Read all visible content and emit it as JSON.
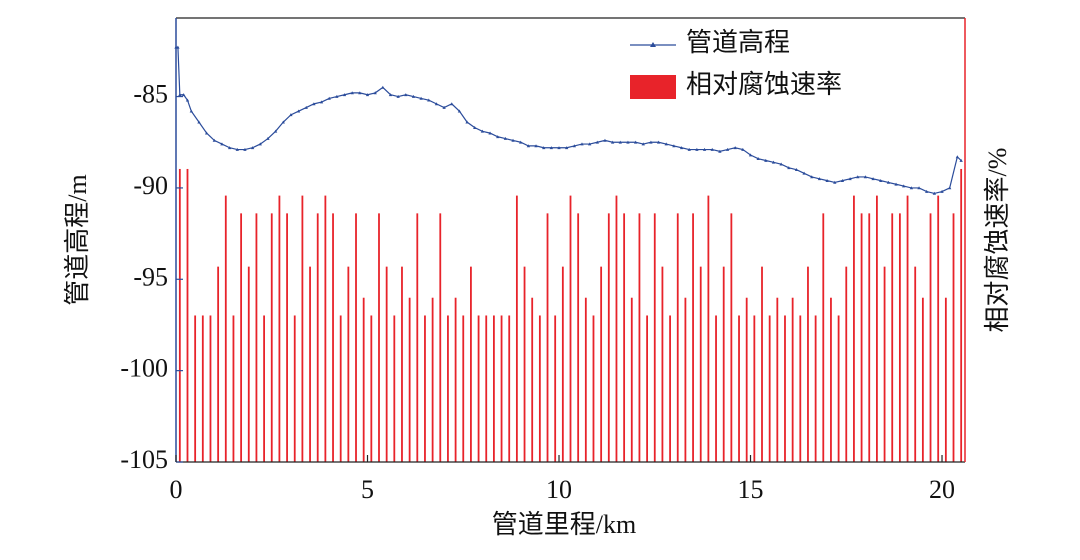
{
  "chart_data": {
    "type": "line",
    "xlabel": "管道里程/km",
    "ylabel": "管道高程/m",
    "y2label": "相对腐蚀速率/%",
    "xlim": [
      0,
      20.6
    ],
    "xticks": [
      0,
      5,
      10,
      15,
      20
    ],
    "ylim": [
      -105,
      -80.7
    ],
    "yticks": [
      -105,
      -100,
      -95,
      -90,
      -85
    ],
    "y2lim": [
      0,
      100
    ],
    "legend": "upper right",
    "series": [
      {
        "name": "管道高程",
        "color": "#2b4c9b",
        "x": [
          0,
          0.05,
          0.1,
          0.2,
          0.3,
          0.4,
          0.6,
          0.8,
          1.0,
          1.2,
          1.4,
          1.6,
          1.8,
          2.0,
          2.2,
          2.4,
          2.6,
          2.8,
          3.0,
          3.2,
          3.4,
          3.6,
          3.8,
          4.0,
          4.2,
          4.4,
          4.6,
          4.8,
          5.0,
          5.2,
          5.4,
          5.6,
          5.8,
          6.0,
          6.2,
          6.4,
          6.6,
          6.8,
          7.0,
          7.2,
          7.4,
          7.6,
          7.8,
          8.0,
          8.2,
          8.4,
          8.6,
          8.8,
          9.0,
          9.2,
          9.4,
          9.6,
          9.8,
          10.0,
          10.2,
          10.4,
          10.6,
          10.8,
          11.0,
          11.2,
          11.4,
          11.6,
          11.8,
          12.0,
          12.2,
          12.4,
          12.6,
          12.8,
          13.0,
          13.2,
          13.4,
          13.6,
          13.8,
          14.0,
          14.2,
          14.4,
          14.6,
          14.8,
          15.0,
          15.2,
          15.4,
          15.6,
          15.8,
          16.0,
          16.2,
          16.4,
          16.6,
          16.8,
          17.0,
          17.2,
          17.4,
          17.6,
          17.8,
          18.0,
          18.2,
          18.4,
          18.6,
          18.8,
          19.0,
          19.2,
          19.4,
          19.6,
          19.8,
          20.0,
          20.2,
          20.4,
          20.5
        ],
        "values": [
          -82.3,
          -82.3,
          -84.9,
          -84.9,
          -85.2,
          -85.8,
          -86.4,
          -87.0,
          -87.4,
          -87.6,
          -87.8,
          -87.9,
          -87.9,
          -87.8,
          -87.6,
          -87.3,
          -86.9,
          -86.4,
          -86.0,
          -85.8,
          -85.6,
          -85.4,
          -85.3,
          -85.1,
          -85.0,
          -84.9,
          -84.8,
          -84.8,
          -84.9,
          -84.8,
          -84.5,
          -84.9,
          -85.0,
          -84.9,
          -85.0,
          -85.1,
          -85.2,
          -85.4,
          -85.6,
          -85.4,
          -85.8,
          -86.4,
          -86.7,
          -86.9,
          -87.0,
          -87.2,
          -87.3,
          -87.4,
          -87.5,
          -87.7,
          -87.7,
          -87.8,
          -87.8,
          -87.8,
          -87.8,
          -87.7,
          -87.6,
          -87.6,
          -87.5,
          -87.4,
          -87.5,
          -87.5,
          -87.5,
          -87.5,
          -87.6,
          -87.5,
          -87.5,
          -87.6,
          -87.7,
          -87.8,
          -87.9,
          -87.9,
          -87.9,
          -87.9,
          -88.0,
          -87.9,
          -87.8,
          -87.9,
          -88.2,
          -88.4,
          -88.5,
          -88.6,
          -88.7,
          -88.9,
          -89.0,
          -89.2,
          -89.4,
          -89.5,
          -89.6,
          -89.7,
          -89.6,
          -89.5,
          -89.4,
          -89.4,
          -89.5,
          -89.6,
          -89.7,
          -89.8,
          -89.9,
          -90.0,
          -90.0,
          -90.2,
          -90.3,
          -90.2,
          -90.0,
          -88.3,
          -88.5
        ]
      },
      {
        "name": "相对腐蚀速率",
        "color": "#e8232a",
        "type": "bar",
        "axis": "y2",
        "x": [
          0.1,
          0.3,
          0.5,
          0.7,
          0.9,
          1.1,
          1.3,
          1.5,
          1.7,
          1.9,
          2.1,
          2.3,
          2.5,
          2.7,
          2.9,
          3.1,
          3.3,
          3.5,
          3.7,
          3.9,
          4.1,
          4.3,
          4.5,
          4.7,
          4.9,
          5.1,
          5.3,
          5.5,
          5.7,
          5.9,
          6.1,
          6.3,
          6.5,
          6.7,
          6.9,
          7.1,
          7.3,
          7.5,
          7.7,
          7.9,
          8.1,
          8.3,
          8.5,
          8.7,
          8.9,
          9.1,
          9.3,
          9.5,
          9.7,
          9.9,
          10.1,
          10.3,
          10.5,
          10.7,
          10.9,
          11.1,
          11.3,
          11.5,
          11.7,
          11.9,
          12.1,
          12.3,
          12.5,
          12.7,
          12.9,
          13.1,
          13.3,
          13.5,
          13.7,
          13.9,
          14.1,
          14.3,
          14.5,
          14.7,
          14.9,
          15.1,
          15.3,
          15.5,
          15.7,
          15.9,
          16.1,
          16.3,
          16.5,
          16.7,
          16.9,
          17.1,
          17.3,
          17.5,
          17.7,
          17.9,
          18.1,
          18.3,
          18.5,
          18.7,
          18.9,
          19.1,
          19.3,
          19.5,
          19.7,
          19.9,
          20.1,
          20.3,
          20.5
        ],
        "values": [
          66,
          66,
          33,
          33,
          33,
          44,
          60,
          33,
          56,
          44,
          56,
          33,
          56,
          60,
          56,
          33,
          60,
          44,
          56,
          60,
          56,
          33,
          44,
          56,
          37,
          33,
          56,
          44,
          33,
          44,
          37,
          56,
          33,
          37,
          56,
          33,
          37,
          33,
          44,
          33,
          33,
          33,
          33,
          33,
          60,
          44,
          37,
          33,
          56,
          33,
          44,
          60,
          56,
          37,
          33,
          44,
          56,
          60,
          56,
          37,
          56,
          33,
          56,
          44,
          33,
          56,
          37,
          56,
          44,
          60,
          33,
          44,
          56,
          33,
          37,
          33,
          44,
          33,
          37,
          33,
          37,
          33,
          44,
          33,
          56,
          37,
          33,
          44,
          60,
          56,
          56,
          60,
          44,
          56,
          56,
          60,
          44,
          37,
          56,
          60,
          37,
          56,
          66
        ]
      }
    ]
  }
}
